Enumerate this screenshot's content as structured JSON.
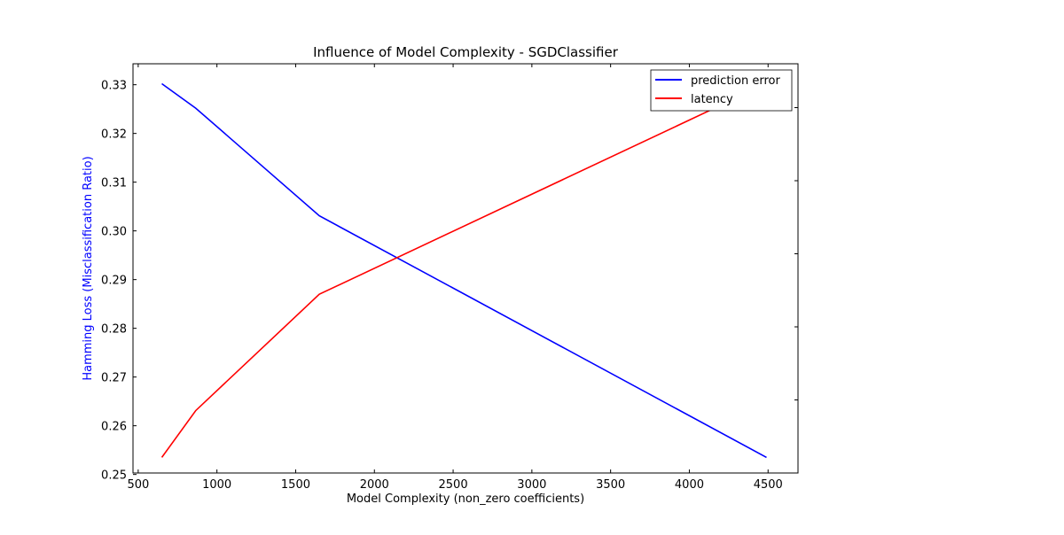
{
  "chart_data": {
    "type": "line",
    "title": "Influence of Model Complexity - SGDClassifier",
    "xlabel": "Model Complexity (non_zero coefficients)",
    "ylabel": "Hamming Loss (Misclassification Ratio)",
    "xlim": [
      467,
      4690
    ],
    "ylim": [
      0.2503,
      0.3343
    ],
    "xticks": [
      500,
      1000,
      1500,
      2000,
      2500,
      3000,
      3500,
      4000,
      4500
    ],
    "yticks": [
      0.25,
      0.26,
      0.27,
      0.28,
      0.29,
      0.3,
      0.31,
      0.32,
      0.33
    ],
    "ytick_labels": [
      "0.25",
      "0.26",
      "0.27",
      "0.28",
      "0.29",
      "0.30",
      "0.31",
      "0.32",
      "0.33"
    ],
    "right_axis_ticks_unlabeled": 5,
    "grid": false,
    "legend_position": "top-right",
    "series": [
      {
        "name": "prediction error",
        "color": "#0000ff",
        "axis": "left",
        "x": [
          650,
          865,
          1650,
          4490
        ],
        "y": [
          0.3302,
          0.3252,
          0.3031,
          0.2535
        ]
      },
      {
        "name": "latency",
        "color": "#ff0000",
        "axis": "right",
        "x": [
          650,
          865,
          1650,
          4490
        ],
        "y": [
          0.2535,
          0.2631,
          0.287,
          0.3302
        ]
      }
    ]
  }
}
